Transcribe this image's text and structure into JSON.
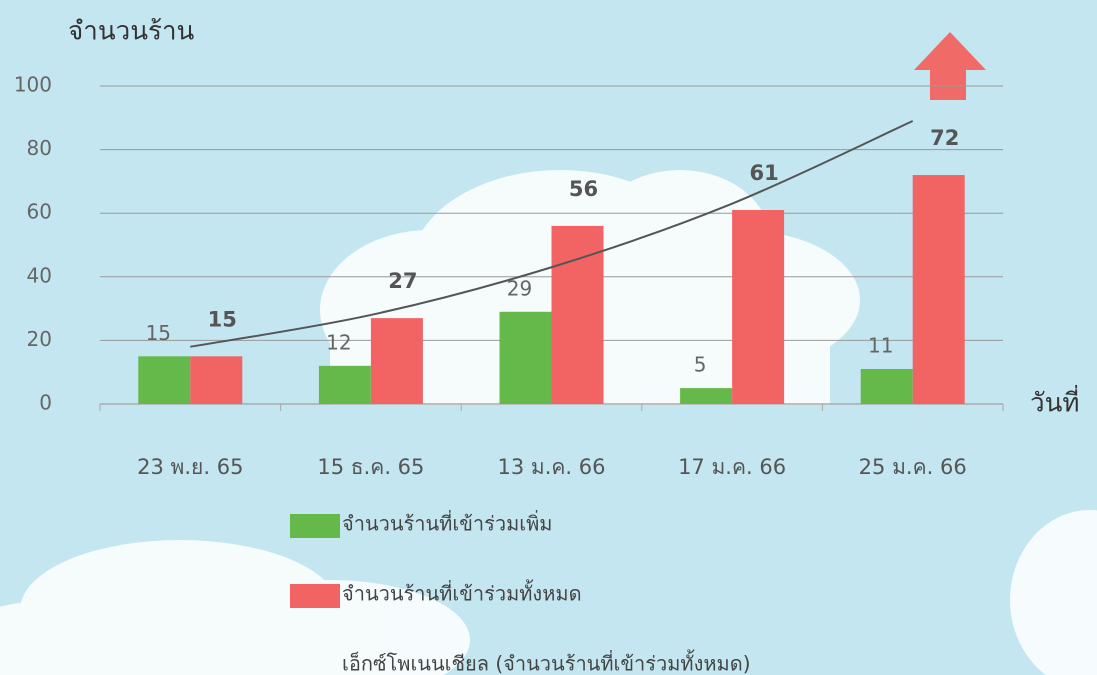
{
  "chart_data": {
    "type": "bar",
    "y_label": "จำนวนร้าน",
    "x_label": "วันที่",
    "categories": [
      "23 พ.ย. 65",
      "15 ธ.ค. 65",
      "13 ม.ค. 66",
      "17 ม.ค. 66",
      "25 ม.ค. 66"
    ],
    "series": [
      {
        "name": "จำนวนร้านที่เข้าร่วมเพิ่ม",
        "color": "#65b94a",
        "values": [
          15,
          12,
          29,
          5,
          11
        ]
      },
      {
        "name": "จำนวนร้านที่เข้าร่วมทั้งหมด",
        "color": "#f26464",
        "values": [
          15,
          27,
          56,
          61,
          72
        ]
      },
      {
        "name": "เอ็กซ์โพเนนเชียล (จำนวนร้านที่เข้าร่วมทั้งหมด)",
        "type": "line",
        "color": "#555555",
        "values": [
          18,
          28,
          43,
          63,
          89
        ]
      }
    ],
    "ylim": [
      0,
      100
    ],
    "yticks": [
      0,
      20,
      40,
      60,
      80,
      100
    ],
    "grid": true
  }
}
